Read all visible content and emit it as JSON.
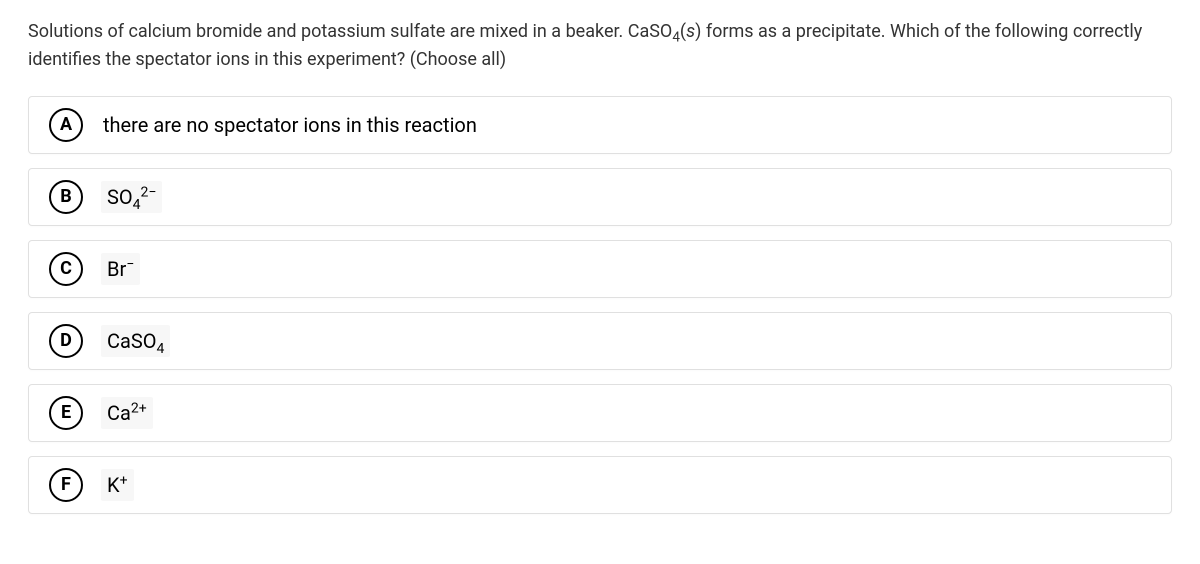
{
  "question": {
    "line_pre": "Solutions of calcium bromide and potassium sulfate are mixed in a beaker. CaSO",
    "sub": "4",
    "paren_open": "(",
    "state": "s",
    "paren_close": ")",
    "line_post": " forms as a precipitate. Which of the following correctly identifies the spectator ions in this experiment? (Choose all)"
  },
  "options": {
    "a": {
      "letter": "A",
      "text": "there are no spectator ions in this reaction",
      "shaded": false
    },
    "b": {
      "letter": "B",
      "base": "SO",
      "sub": "4",
      "sup": "2−",
      "shaded": true
    },
    "c": {
      "letter": "C",
      "base": "Br",
      "sup": "−",
      "shaded": true
    },
    "d": {
      "letter": "D",
      "base": "CaSO",
      "sub": "4",
      "shaded": true
    },
    "e": {
      "letter": "E",
      "base": "Ca",
      "sup": "2+",
      "shaded": true
    },
    "f": {
      "letter": "F",
      "base": "K",
      "sup": "+",
      "shaded": true
    }
  },
  "colors": {
    "page_bg": "#ffffff",
    "text": "#333333",
    "option_border": "#e0e0e0",
    "marker_border": "#000000",
    "shaded_bg": "#f7f7f7"
  }
}
